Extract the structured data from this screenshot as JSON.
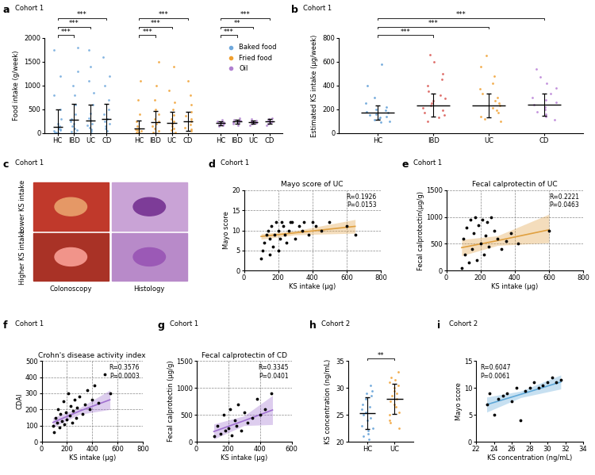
{
  "chart_data": [
    {
      "type": "strip",
      "panel": "a",
      "subtitle": "Cohort 1",
      "ylabel": "Food intake (g/week)",
      "groups": [
        "HC",
        "IBD",
        "UC",
        "CD"
      ],
      "ylim": [
        0,
        2000
      ],
      "yticks": [
        0,
        500,
        1000,
        1500,
        2000
      ],
      "legend": "upper right",
      "series": [
        {
          "name": "Baked food",
          "color": "#6fa8dc",
          "values": [
            [
              0,
              10,
              20,
              40,
              60,
              80,
              100,
              150,
              200,
              300,
              500,
              800,
              1200,
              1750
            ],
            [
              0,
              30,
              60,
              100,
              150,
              200,
              250,
              300,
              400,
              600,
              800,
              1000,
              1300,
              1800
            ],
            [
              0,
              40,
              80,
              120,
              160,
              200,
              260,
              320,
              420,
              600,
              850,
              1100,
              1400,
              1750
            ],
            [
              50,
              100,
              150,
              200,
              250,
              300,
              400,
              500,
              700,
              1000,
              1200,
              1600
            ]
          ],
          "mean": [
            130,
            280,
            270,
            290
          ],
          "sd": [
            370,
            330,
            330,
            320
          ],
          "significance": [
            {
              "from": "HC",
              "to": "IBD",
              "label": "***"
            },
            {
              "from": "HC",
              "to": "UC",
              "label": "***"
            },
            {
              "from": "HC",
              "to": "CD",
              "label": "***"
            }
          ]
        },
        {
          "name": "Fried food",
          "color": "#f0a030",
          "values": [
            [
              0,
              10,
              20,
              40,
              60,
              80,
              100,
              150,
              250,
              400,
              700,
              1100
            ],
            [
              20,
              50,
              100,
              150,
              200,
              250,
              300,
              400,
              500,
              700,
              1000,
              1500
            ],
            [
              20,
              60,
              100,
              140,
              200,
              240,
              300,
              380,
              500,
              650,
              900,
              1400
            ],
            [
              40,
              80,
              120,
              180,
              240,
              300,
              360,
              450,
              600,
              800,
              1100
            ]
          ],
          "mean": [
            90,
            230,
            220,
            250
          ],
          "sd": [
            180,
            230,
            220,
            200
          ],
          "significance": [
            {
              "from": "HC",
              "to": "IBD",
              "label": "***"
            },
            {
              "from": "HC",
              "to": "UC",
              "label": "***"
            },
            {
              "from": "HC",
              "to": "CD",
              "label": "***"
            }
          ]
        },
        {
          "name": "Oil",
          "color": "#b080d0",
          "values": [
            [
              150,
              170,
              190,
              200,
              210,
              220,
              230,
              250,
              280
            ],
            [
              170,
              190,
              210,
              230,
              240,
              250,
              260,
              280,
              310
            ],
            [
              170,
              190,
              210,
              220,
              230,
              240,
              250,
              270,
              300
            ],
            [
              160,
              190,
              210,
              230,
              240,
              250,
              270,
              290,
              320
            ]
          ],
          "mean": [
            210,
            240,
            230,
            240
          ],
          "sd": [
            40,
            40,
            40,
            50
          ],
          "significance": [
            {
              "from": "HC",
              "to": "IBD",
              "label": "***"
            },
            {
              "from": "HC",
              "to": "UC",
              "label": "**"
            },
            {
              "from": "HC",
              "to": "CD",
              "label": "***"
            }
          ]
        }
      ]
    },
    {
      "type": "strip",
      "panel": "b",
      "subtitle": "Cohort 1",
      "ylabel": "Estimated KS intake (µg/week)",
      "categories": [
        "HC",
        "IBD",
        "UC",
        "CD"
      ],
      "colors": [
        "#5b9bd5",
        "#d9534f",
        "#f0a030",
        "#b87fd6"
      ],
      "ylim": [
        0,
        800
      ],
      "yticks": [
        0,
        200,
        400,
        600,
        800
      ],
      "values": [
        [
          90,
          100,
          110,
          120,
          130,
          140,
          150,
          160,
          170,
          180,
          190,
          200,
          220,
          250,
          300,
          400,
          580
        ],
        [
          100,
          130,
          150,
          170,
          190,
          210,
          230,
          250,
          270,
          290,
          320,
          350,
          400,
          450,
          500,
          600,
          660
        ],
        [
          100,
          120,
          140,
          170,
          190,
          210,
          230,
          250,
          270,
          300,
          330,
          370,
          420,
          480,
          560,
          650
        ],
        [
          110,
          140,
          160,
          180,
          200,
          220,
          240,
          260,
          280,
          300,
          330,
          380,
          420,
          470,
          540
        ]
      ],
      "mean": [
        170,
        235,
        230,
        240
      ],
      "sd": [
        60,
        95,
        100,
        95
      ],
      "significance": [
        {
          "from": "HC",
          "to": "IBD",
          "label": "***"
        },
        {
          "from": "HC",
          "to": "UC",
          "label": "***"
        },
        {
          "from": "HC",
          "to": "CD",
          "label": "***"
        }
      ]
    },
    {
      "type": "image_grid",
      "panel": "c",
      "subtitle": "Cohort 1",
      "rows": [
        "Lower KS intake",
        "Higher KS intake"
      ],
      "columns": [
        "Colonoscopy",
        "Histology"
      ]
    },
    {
      "type": "scatter",
      "panel": "d",
      "subtitle": "Cohort 1",
      "title": "Mayo score of UC",
      "xlabel": "KS intake (µg)",
      "ylabel": "Mayo score",
      "color": "#e0a040",
      "grid": true,
      "xlim": [
        0,
        800
      ],
      "xticks": [
        0,
        200,
        400,
        600,
        800
      ],
      "ylim": [
        0,
        20
      ],
      "yticks": [
        0,
        5,
        10,
        15,
        20
      ],
      "x": [
        100,
        110,
        120,
        130,
        140,
        150,
        150,
        160,
        170,
        180,
        190,
        200,
        200,
        210,
        220,
        230,
        240,
        250,
        260,
        270,
        280,
        300,
        320,
        340,
        350,
        380,
        400,
        420,
        450,
        500,
        600,
        650
      ],
      "y": [
        3,
        5,
        7,
        9,
        10,
        4,
        8,
        11,
        6,
        9,
        12,
        5,
        10,
        8,
        12,
        11,
        9,
        7,
        10,
        12,
        12,
        8,
        11,
        10,
        12,
        9,
        12,
        11,
        10,
        12,
        11,
        9
      ],
      "fit": {
        "x": [
          100,
          300,
          650
        ],
        "y": [
          8.5,
          9.4,
          11.0
        ],
        "lower": [
          7.8,
          8.9,
          9.3
        ],
        "upper": [
          9.2,
          9.9,
          12.7
        ]
      },
      "annotation": [
        "R=0.1926",
        "P=0.0153"
      ]
    },
    {
      "type": "scatter",
      "panel": "e",
      "subtitle": "Cohort 1",
      "title": "Fecal calprotectin of UC",
      "xlabel": "KS intake (µg)",
      "ylabel": "Fecal calprotectin(µg/g)",
      "color": "#e0a040",
      "grid": true,
      "xlim": [
        0,
        800
      ],
      "xticks": [
        0,
        200,
        400,
        600,
        800
      ],
      "ylim": [
        0,
        1500
      ],
      "yticks": [
        0,
        500,
        1000,
        1500
      ],
      "x": [
        90,
        100,
        110,
        120,
        130,
        140,
        150,
        160,
        170,
        180,
        190,
        200,
        210,
        220,
        230,
        240,
        250,
        260,
        280,
        300,
        320,
        350,
        380,
        420,
        600
      ],
      "y": [
        50,
        600,
        300,
        800,
        150,
        950,
        400,
        700,
        1000,
        200,
        850,
        500,
        950,
        300,
        650,
        900,
        450,
        1000,
        750,
        600,
        400,
        550,
        700,
        500,
        750
      ],
      "fit": {
        "x": [
          90,
          300,
          600
        ],
        "y": [
          430,
          560,
          760
        ],
        "lower": [
          280,
          470,
          520
        ],
        "upper": [
          580,
          650,
          1050
        ]
      },
      "annotation": [
        "R=0.2221",
        "P=0.0463"
      ]
    },
    {
      "type": "scatter",
      "panel": "f",
      "subtitle": "Cohort 1",
      "title": "Crohn's disease activity index",
      "xlabel": "KS intake (µg)",
      "ylabel": "CDAI",
      "color": "#a070d0",
      "grid": true,
      "xlim": [
        0,
        800
      ],
      "xticks": [
        0,
        200,
        400,
        600,
        800
      ],
      "ylim": [
        0,
        500
      ],
      "yticks": [
        0,
        100,
        200,
        300,
        400,
        500
      ],
      "x": [
        90,
        100,
        110,
        120,
        130,
        140,
        150,
        160,
        170,
        180,
        190,
        200,
        210,
        220,
        230,
        240,
        250,
        260,
        270,
        280,
        300,
        320,
        340,
        360,
        380,
        400,
        420,
        450,
        500,
        540
      ],
      "y": [
        100,
        60,
        150,
        120,
        200,
        90,
        170,
        130,
        250,
        110,
        180,
        140,
        300,
        160,
        220,
        120,
        190,
        260,
        150,
        210,
        280,
        170,
        230,
        320,
        200,
        260,
        350,
        240,
        420,
        300
      ],
      "fit": {
        "x": [
          90,
          300,
          540
        ],
        "y": [
          120,
          190,
          260
        ],
        "lower": [
          90,
          170,
          200
        ],
        "upper": [
          150,
          210,
          320
        ]
      },
      "annotation": [
        "R=0.3576",
        "P=0.0003"
      ]
    },
    {
      "type": "scatter",
      "panel": "g",
      "subtitle": "Cohort 1",
      "title": "Fecal calprotectin of CD",
      "xlabel": "KS intake (µg)",
      "ylabel": "Fecal calprotectin (µg/g)",
      "color": "#a070d0",
      "grid": true,
      "xlim": [
        0,
        600
      ],
      "xticks": [
        0,
        200,
        400,
        600
      ],
      "ylim": [
        0,
        1500
      ],
      "yticks": [
        0,
        500,
        1000,
        1500
      ],
      "x": [
        110,
        130,
        150,
        170,
        180,
        200,
        210,
        220,
        240,
        250,
        260,
        280,
        300,
        320,
        350,
        380,
        400,
        430,
        470
      ],
      "y": [
        100,
        300,
        150,
        500,
        200,
        250,
        600,
        120,
        400,
        300,
        700,
        200,
        550,
        350,
        450,
        800,
        500,
        600,
        900
      ],
      "fit": {
        "x": [
          110,
          300,
          480
        ],
        "y": [
          190,
          390,
          590
        ],
        "lower": [
          50,
          300,
          320
        ],
        "upper": [
          330,
          480,
          860
        ]
      },
      "annotation": [
        "R=0.3345",
        "P=0.0401"
      ]
    },
    {
      "type": "strip",
      "panel": "h",
      "subtitle": "Cohort 2",
      "ylabel": "KS concentration (ng/mL)",
      "categories": [
        "HC",
        "UC"
      ],
      "colors": [
        "#5b9bd5",
        "#f0a030"
      ],
      "ylim": [
        20,
        35
      ],
      "yticks": [
        20,
        25,
        30,
        35
      ],
      "values": [
        [
          20.5,
          21,
          21.5,
          22,
          22.5,
          23,
          24,
          24.5,
          25,
          25.5,
          26,
          26.5,
          27,
          28,
          28.5,
          29,
          29.5,
          30.5
        ],
        [
          22.5,
          23.5,
          24,
          25,
          25.5,
          26.5,
          27,
          27.5,
          28,
          28.5,
          29,
          29.5,
          30,
          30.5,
          31,
          31.5,
          32,
          33
        ]
      ],
      "mean": [
        25.3,
        27.9
      ],
      "sd": [
        2.9,
        2.8
      ],
      "significance": [
        {
          "from": "HC",
          "to": "UC",
          "label": "**"
        }
      ]
    },
    {
      "type": "scatter",
      "panel": "i",
      "subtitle": "Cohort 2",
      "xlabel": "KS concentration (ng/mL)",
      "ylabel": "Mayo score",
      "color": "#5fa8d8",
      "grid": false,
      "xlim": [
        22,
        34
      ],
      "xticks": [
        22,
        24,
        26,
        28,
        30,
        32,
        34
      ],
      "ylim": [
        0,
        15
      ],
      "yticks": [
        0,
        5,
        10,
        15
      ],
      "x": [
        23.2,
        23.5,
        24,
        24.5,
        25,
        25.5,
        26,
        26.5,
        27,
        27.5,
        28,
        28.5,
        29,
        29.5,
        30,
        30.5,
        31,
        31.5
      ],
      "y": [
        7,
        9,
        5,
        8,
        8.5,
        9,
        7.5,
        10,
        4,
        9.5,
        10,
        11,
        10,
        10.5,
        11,
        12,
        11,
        11.5
      ],
      "fit": {
        "x": [
          23.2,
          27,
          31.5
        ],
        "y": [
          6.9,
          8.8,
          11.1
        ],
        "lower": [
          5.5,
          8.2,
          9.8
        ],
        "upper": [
          8.3,
          9.4,
          12.4
        ]
      },
      "annotation": [
        "R=0.6047",
        "P=0.0061"
      ]
    }
  ]
}
